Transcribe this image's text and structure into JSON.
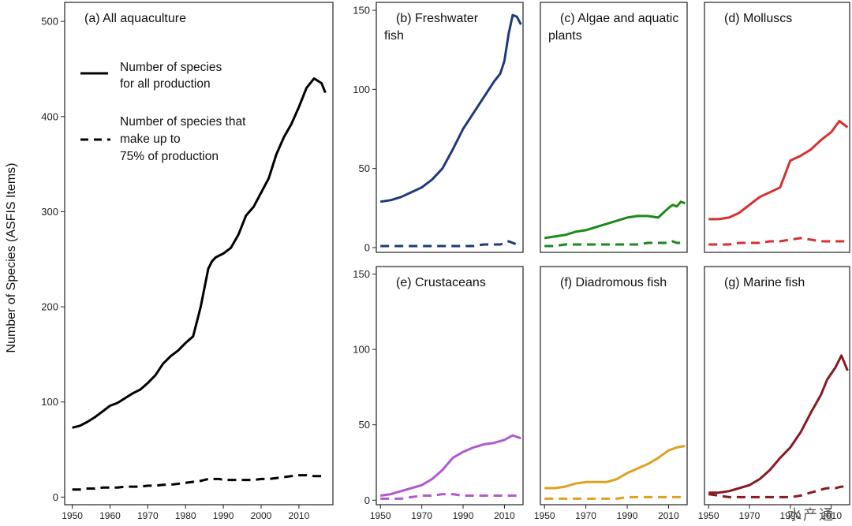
{
  "ylabel": "Number of Species (ASFIS Items)",
  "watermark": "水产通",
  "legend": {
    "solid_line1": "Number of species",
    "solid_line2": "for all production",
    "dashed_line1": "Number of species that",
    "dashed_line2": "make up to",
    "dashed_line3": "75% of production"
  },
  "chart_data": [
    {
      "id": "a",
      "type": "line",
      "title": "(a) All aquaculture",
      "color": "#000000",
      "xlim": [
        1948,
        2019
      ],
      "ylim": [
        -8,
        520
      ],
      "xticks": [
        1950,
        1960,
        1970,
        1980,
        1990,
        2000,
        2010
      ],
      "yticks": [
        0,
        100,
        200,
        300,
        400,
        500
      ],
      "x": [
        1950,
        1952,
        1954,
        1956,
        1958,
        1960,
        1962,
        1964,
        1966,
        1968,
        1970,
        1972,
        1974,
        1976,
        1978,
        1980,
        1982,
        1984,
        1985,
        1986,
        1987,
        1988,
        1989,
        1990,
        1992,
        1994,
        1996,
        1998,
        2000,
        2002,
        2004,
        2006,
        2008,
        2010,
        2012,
        2014,
        2016,
        2017
      ],
      "series": [
        {
          "name": "Number of species for all production",
          "style": "solid",
          "values": [
            73,
            75,
            79,
            84,
            90,
            96,
            99,
            104,
            109,
            113,
            120,
            128,
            140,
            148,
            154,
            162,
            169,
            200,
            220,
            240,
            248,
            252,
            254,
            256,
            262,
            276,
            296,
            305,
            320,
            335,
            360,
            378,
            392,
            410,
            430,
            440,
            435,
            425
          ]
        },
        {
          "name": "Number of species that make up to 75% of production",
          "style": "dashed",
          "values": [
            8,
            8,
            9,
            9,
            10,
            10,
            10,
            11,
            11,
            11,
            12,
            12,
            13,
            13,
            14,
            15,
            16,
            17,
            18,
            19,
            19,
            19,
            19,
            18,
            18,
            18,
            18,
            18,
            19,
            19,
            20,
            21,
            22,
            23,
            23,
            22,
            22,
            22
          ]
        }
      ]
    },
    {
      "id": "b",
      "type": "line",
      "title": "(b) Freshwater",
      "title2": "fish",
      "color": "#1f3a7a",
      "xlim": [
        1948,
        2019
      ],
      "ylim": [
        -3,
        155
      ],
      "xticks": [],
      "yticks": [
        0,
        50,
        100,
        150
      ],
      "x": [
        1950,
        1955,
        1960,
        1965,
        1970,
        1975,
        1980,
        1985,
        1990,
        1995,
        2000,
        2005,
        2008,
        2010,
        2012,
        2014,
        2016,
        2018
      ],
      "series": [
        {
          "name": "All production",
          "style": "solid",
          "values": [
            29,
            30,
            32,
            35,
            38,
            43,
            50,
            62,
            75,
            85,
            95,
            105,
            110,
            118,
            135,
            147,
            146,
            141
          ]
        },
        {
          "name": "75% of production",
          "style": "dashed",
          "values": [
            1,
            1,
            1,
            1,
            1,
            1,
            1,
            1,
            1,
            1,
            2,
            2,
            2,
            3,
            4,
            3,
            2,
            2
          ]
        }
      ]
    },
    {
      "id": "c",
      "type": "line",
      "title": "(c) Algae and aquatic",
      "title2": "plants",
      "color": "#1a8a1a",
      "xlim": [
        1948,
        2019
      ],
      "ylim": [
        -3,
        155
      ],
      "xticks": [],
      "yticks": [],
      "x": [
        1950,
        1955,
        1960,
        1965,
        1970,
        1975,
        1980,
        1985,
        1990,
        1995,
        2000,
        2005,
        2010,
        2012,
        2014,
        2016,
        2018
      ],
      "series": [
        {
          "name": "All production",
          "style": "solid",
          "values": [
            6,
            7,
            8,
            10,
            11,
            13,
            15,
            17,
            19,
            20,
            20,
            19,
            25,
            27,
            26,
            29,
            28
          ]
        },
        {
          "name": "75% of production",
          "style": "dashed",
          "values": [
            1,
            1,
            2,
            2,
            2,
            2,
            2,
            2,
            2,
            2,
            3,
            3,
            3,
            4,
            3,
            3,
            2
          ]
        }
      ]
    },
    {
      "id": "d",
      "type": "line",
      "title": "(d) Molluscs",
      "color": "#d63030",
      "xlim": [
        1948,
        2019
      ],
      "ylim": [
        -3,
        155
      ],
      "xticks": [],
      "yticks": [],
      "x": [
        1950,
        1955,
        1960,
        1965,
        1970,
        1975,
        1980,
        1985,
        1990,
        1995,
        2000,
        2005,
        2010,
        2014,
        2018
      ],
      "series": [
        {
          "name": "All production",
          "style": "solid",
          "values": [
            18,
            18,
            19,
            22,
            27,
            32,
            35,
            38,
            55,
            58,
            62,
            68,
            73,
            80,
            76
          ]
        },
        {
          "name": "75% of production",
          "style": "dashed",
          "values": [
            2,
            2,
            2,
            3,
            3,
            3,
            4,
            4,
            5,
            6,
            5,
            4,
            4,
            4,
            4
          ]
        }
      ]
    },
    {
      "id": "e",
      "type": "line",
      "title": "(e) Crustaceans",
      "color": "#b05ad0",
      "xlim": [
        1948,
        2019
      ],
      "ylim": [
        -3,
        155
      ],
      "xticks": [
        1950,
        1970,
        1990,
        2010
      ],
      "yticks": [
        0,
        50,
        100,
        150
      ],
      "x": [
        1950,
        1955,
        1960,
        1965,
        1970,
        1975,
        1980,
        1985,
        1990,
        1995,
        2000,
        2005,
        2010,
        2014,
        2018
      ],
      "series": [
        {
          "name": "All production",
          "style": "solid",
          "values": [
            3,
            4,
            6,
            8,
            10,
            14,
            20,
            28,
            32,
            35,
            37,
            38,
            40,
            43,
            41
          ]
        },
        {
          "name": "75% of production",
          "style": "dashed",
          "values": [
            1,
            1,
            1,
            2,
            3,
            3,
            4,
            4,
            3,
            3,
            3,
            3,
            3,
            3,
            3
          ]
        }
      ]
    },
    {
      "id": "f",
      "type": "line",
      "title": "(f) Diadromous fish",
      "color": "#e0a020",
      "xlim": [
        1948,
        2019
      ],
      "ylim": [
        -3,
        155
      ],
      "xticks": [
        1950,
        1970,
        1990,
        2010
      ],
      "yticks": [],
      "x": [
        1950,
        1955,
        1960,
        1965,
        1970,
        1975,
        1980,
        1985,
        1990,
        1995,
        2000,
        2005,
        2010,
        2014,
        2018
      ],
      "series": [
        {
          "name": "All production",
          "style": "solid",
          "values": [
            8,
            8,
            9,
            11,
            12,
            12,
            12,
            14,
            18,
            21,
            24,
            28,
            33,
            35,
            36
          ]
        },
        {
          "name": "75% of production",
          "style": "dashed",
          "values": [
            1,
            1,
            1,
            1,
            1,
            1,
            1,
            1,
            2,
            2,
            2,
            2,
            2,
            2,
            2
          ]
        }
      ]
    },
    {
      "id": "g",
      "type": "line",
      "title": "(g) Marine fish",
      "color": "#8a1a22",
      "xlim": [
        1948,
        2019
      ],
      "ylim": [
        -3,
        155
      ],
      "xticks": [
        1950,
        1970,
        1990,
        2010
      ],
      "yticks": [],
      "x": [
        1950,
        1955,
        1960,
        1965,
        1970,
        1975,
        1980,
        1985,
        1990,
        1995,
        2000,
        2005,
        2008,
        2012,
        2015,
        2018
      ],
      "series": [
        {
          "name": "All production",
          "style": "solid",
          "values": [
            5,
            5,
            6,
            8,
            10,
            14,
            20,
            28,
            35,
            45,
            58,
            70,
            80,
            88,
            96,
            86
          ]
        },
        {
          "name": "75% of production",
          "style": "dashed",
          "values": [
            4,
            3,
            2,
            2,
            2,
            2,
            2,
            2,
            2,
            3,
            5,
            7,
            8,
            8,
            9,
            9
          ]
        }
      ]
    }
  ]
}
